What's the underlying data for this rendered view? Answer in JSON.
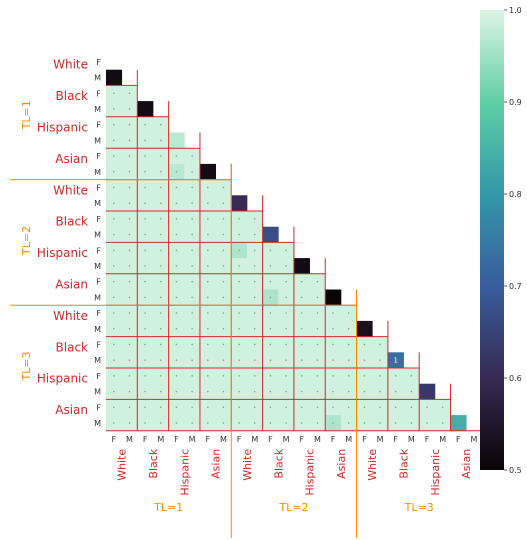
{
  "chart_data": {
    "type": "heatmap",
    "title": "",
    "xlabel": "",
    "ylabel": "",
    "groups": [
      "TL=1",
      "TL=2",
      "TL=3"
    ],
    "races": [
      "White",
      "Black",
      "Hispanic",
      "Asian"
    ],
    "sexes": [
      "F",
      "M"
    ],
    "mask": "upper-triangle",
    "color_range": [
      0.5,
      1.0
    ],
    "colormap": "mako",
    "colorbar_ticks": [
      "0.5",
      "0.6",
      "0.7",
      "0.8",
      "0.9",
      "1.0"
    ],
    "default_offdiagonal_value": 0.99,
    "diagonal_values": [
      0.52,
      0.52,
      0.86,
      0.52,
      0.6,
      0.67,
      0.52,
      0.5,
      0.53,
      0.73,
      0.63,
      0.84
    ],
    "offdiagonal_overrides": [
      {
        "row": 5,
        "col": 4,
        "value": 0.97
      },
      {
        "row": 7,
        "col": 4,
        "value": 0.97
      },
      {
        "row": 12,
        "col": 8,
        "value": 0.96
      },
      {
        "row": 15,
        "col": 10,
        "value": 0.96
      },
      {
        "row": 23,
        "col": 14,
        "value": 0.96
      }
    ],
    "cell_annotations": [
      {
        "row": 19,
        "col": 18,
        "text": "1"
      }
    ],
    "grid_colors": {
      "race_line": "#d62728",
      "group_line": "#ff8c00",
      "race_text": "#d62728",
      "group_text": "#ff8c00"
    }
  }
}
